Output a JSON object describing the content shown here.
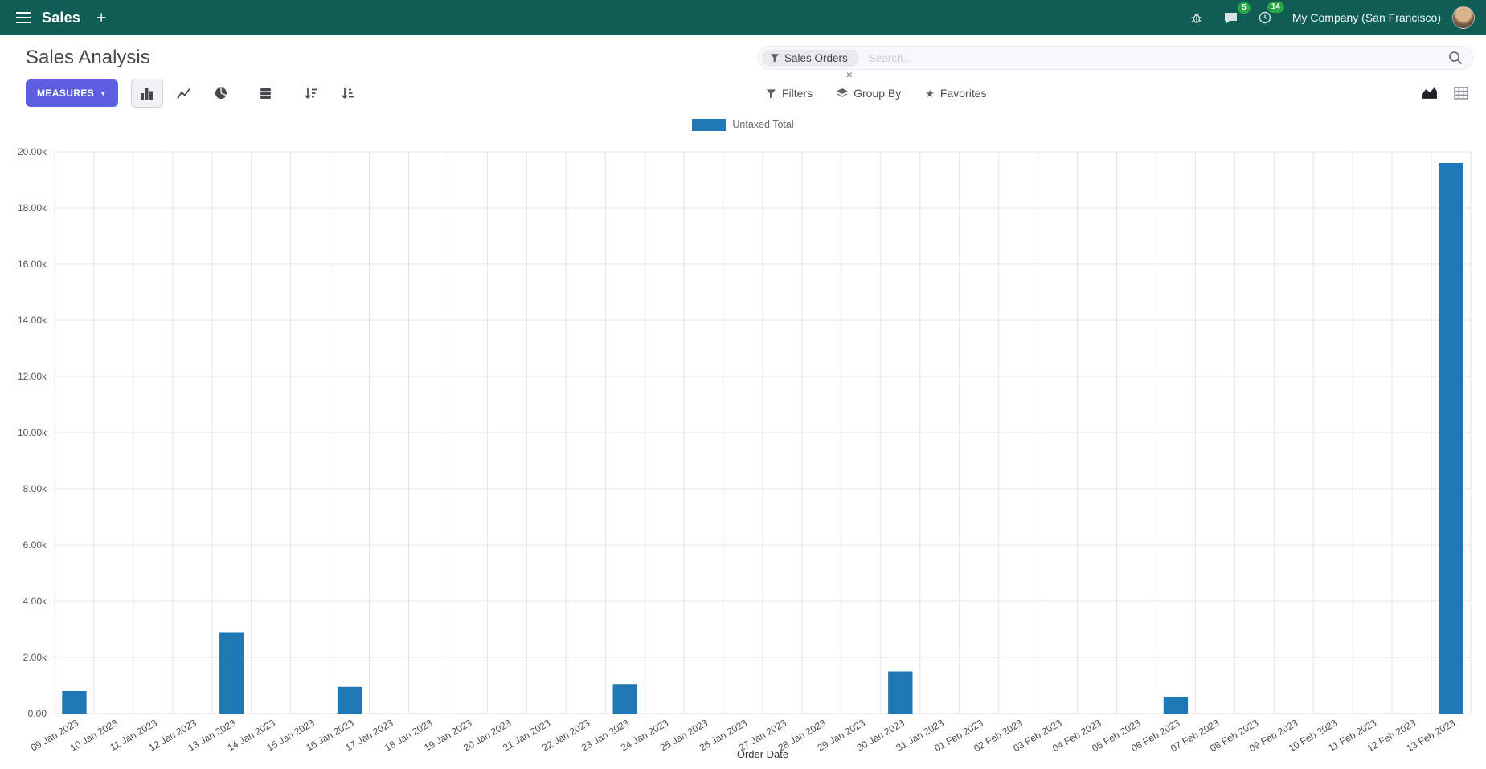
{
  "colors": {
    "navbar_bg": "#0f5d54",
    "measures_btn": "#5d5fe0",
    "badge": "#28a745",
    "bar": "#1f77b4"
  },
  "icons": {
    "hamburger": "apps-menu",
    "plus": "+",
    "caret_down": "▼",
    "close": "×",
    "favorites_star": "★"
  },
  "navbar": {
    "app_name": "Sales",
    "company": "My Company (San Francisco)",
    "message_badge": "5",
    "activity_badge": "14"
  },
  "control_panel": {
    "title": "Sales Analysis",
    "measures_label": "MEASURES",
    "search": {
      "facet": "Sales Orders",
      "placeholder": "Search..."
    },
    "buttons": {
      "filters": "Filters",
      "group_by": "Group By",
      "favorites": "Favorites"
    }
  },
  "chart_data": {
    "type": "bar",
    "title": "",
    "legend": [
      "Untaxed Total"
    ],
    "series_color": "#1f77b4",
    "xlabel": "Order Date",
    "ylabel": "",
    "ylim": [
      0,
      20000
    ],
    "ytick_step": 2000,
    "grid": true,
    "legend_position": "top",
    "ytick_labels": [
      "0.00",
      "2.00k",
      "4.00k",
      "6.00k",
      "8.00k",
      "10.00k",
      "12.00k",
      "14.00k",
      "16.00k",
      "18.00k",
      "20.00k"
    ],
    "categories": [
      "09 Jan 2023",
      "10 Jan 2023",
      "11 Jan 2023",
      "12 Jan 2023",
      "13 Jan 2023",
      "14 Jan 2023",
      "15 Jan 2023",
      "16 Jan 2023",
      "17 Jan 2023",
      "18 Jan 2023",
      "19 Jan 2023",
      "20 Jan 2023",
      "21 Jan 2023",
      "22 Jan 2023",
      "23 Jan 2023",
      "24 Jan 2023",
      "25 Jan 2023",
      "26 Jan 2023",
      "27 Jan 2023",
      "28 Jan 2023",
      "29 Jan 2023",
      "30 Jan 2023",
      "31 Jan 2023",
      "01 Feb 2023",
      "02 Feb 2023",
      "03 Feb 2023",
      "04 Feb 2023",
      "05 Feb 2023",
      "06 Feb 2023",
      "07 Feb 2023",
      "08 Feb 2023",
      "09 Feb 2023",
      "10 Feb 2023",
      "11 Feb 2023",
      "12 Feb 2023",
      "13 Feb 2023"
    ],
    "values": [
      800,
      0,
      0,
      0,
      2900,
      0,
      0,
      950,
      0,
      0,
      0,
      0,
      0,
      0,
      1050,
      0,
      0,
      0,
      0,
      0,
      0,
      1500,
      0,
      0,
      0,
      0,
      0,
      0,
      600,
      0,
      0,
      0,
      0,
      0,
      0,
      19600
    ]
  }
}
